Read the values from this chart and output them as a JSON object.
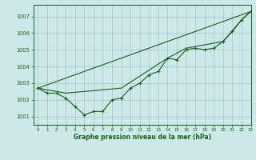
{
  "title": "Graphe pression niveau de la mer (hPa)",
  "background_color": "#cce8e8",
  "grid_color": "#aacccc",
  "line_color": "#1a5c1a",
  "xlim": [
    -0.5,
    23
  ],
  "ylim": [
    1000.5,
    1007.7
  ],
  "yticks": [
    1001,
    1002,
    1003,
    1004,
    1005,
    1006,
    1007
  ],
  "xticks": [
    0,
    1,
    2,
    3,
    4,
    5,
    6,
    7,
    8,
    9,
    10,
    11,
    12,
    13,
    14,
    15,
    16,
    17,
    18,
    19,
    20,
    21,
    22,
    23
  ],
  "series_markers": {
    "x": [
      0,
      1,
      2,
      3,
      4,
      5,
      6,
      7,
      8,
      9,
      10,
      11,
      12,
      13,
      14,
      15,
      16,
      17,
      18,
      19,
      20,
      21,
      22,
      23
    ],
    "y": [
      1002.7,
      1002.4,
      1002.4,
      1002.1,
      1001.6,
      1001.1,
      1001.3,
      1001.3,
      1002.0,
      1002.1,
      1002.7,
      1003.0,
      1003.5,
      1003.7,
      1004.5,
      1004.4,
      1005.0,
      1005.1,
      1005.0,
      1005.1,
      1005.5,
      1006.1,
      1006.8,
      1007.3
    ]
  },
  "series_smooth1": {
    "x": [
      0,
      23
    ],
    "y": [
      1002.7,
      1007.3
    ]
  },
  "series_smooth2": {
    "x": [
      0,
      3,
      9,
      14,
      16,
      17,
      20,
      22,
      23
    ],
    "y": [
      1002.7,
      1002.4,
      1002.7,
      1004.5,
      1005.1,
      1005.2,
      1005.5,
      1006.8,
      1007.3
    ]
  }
}
